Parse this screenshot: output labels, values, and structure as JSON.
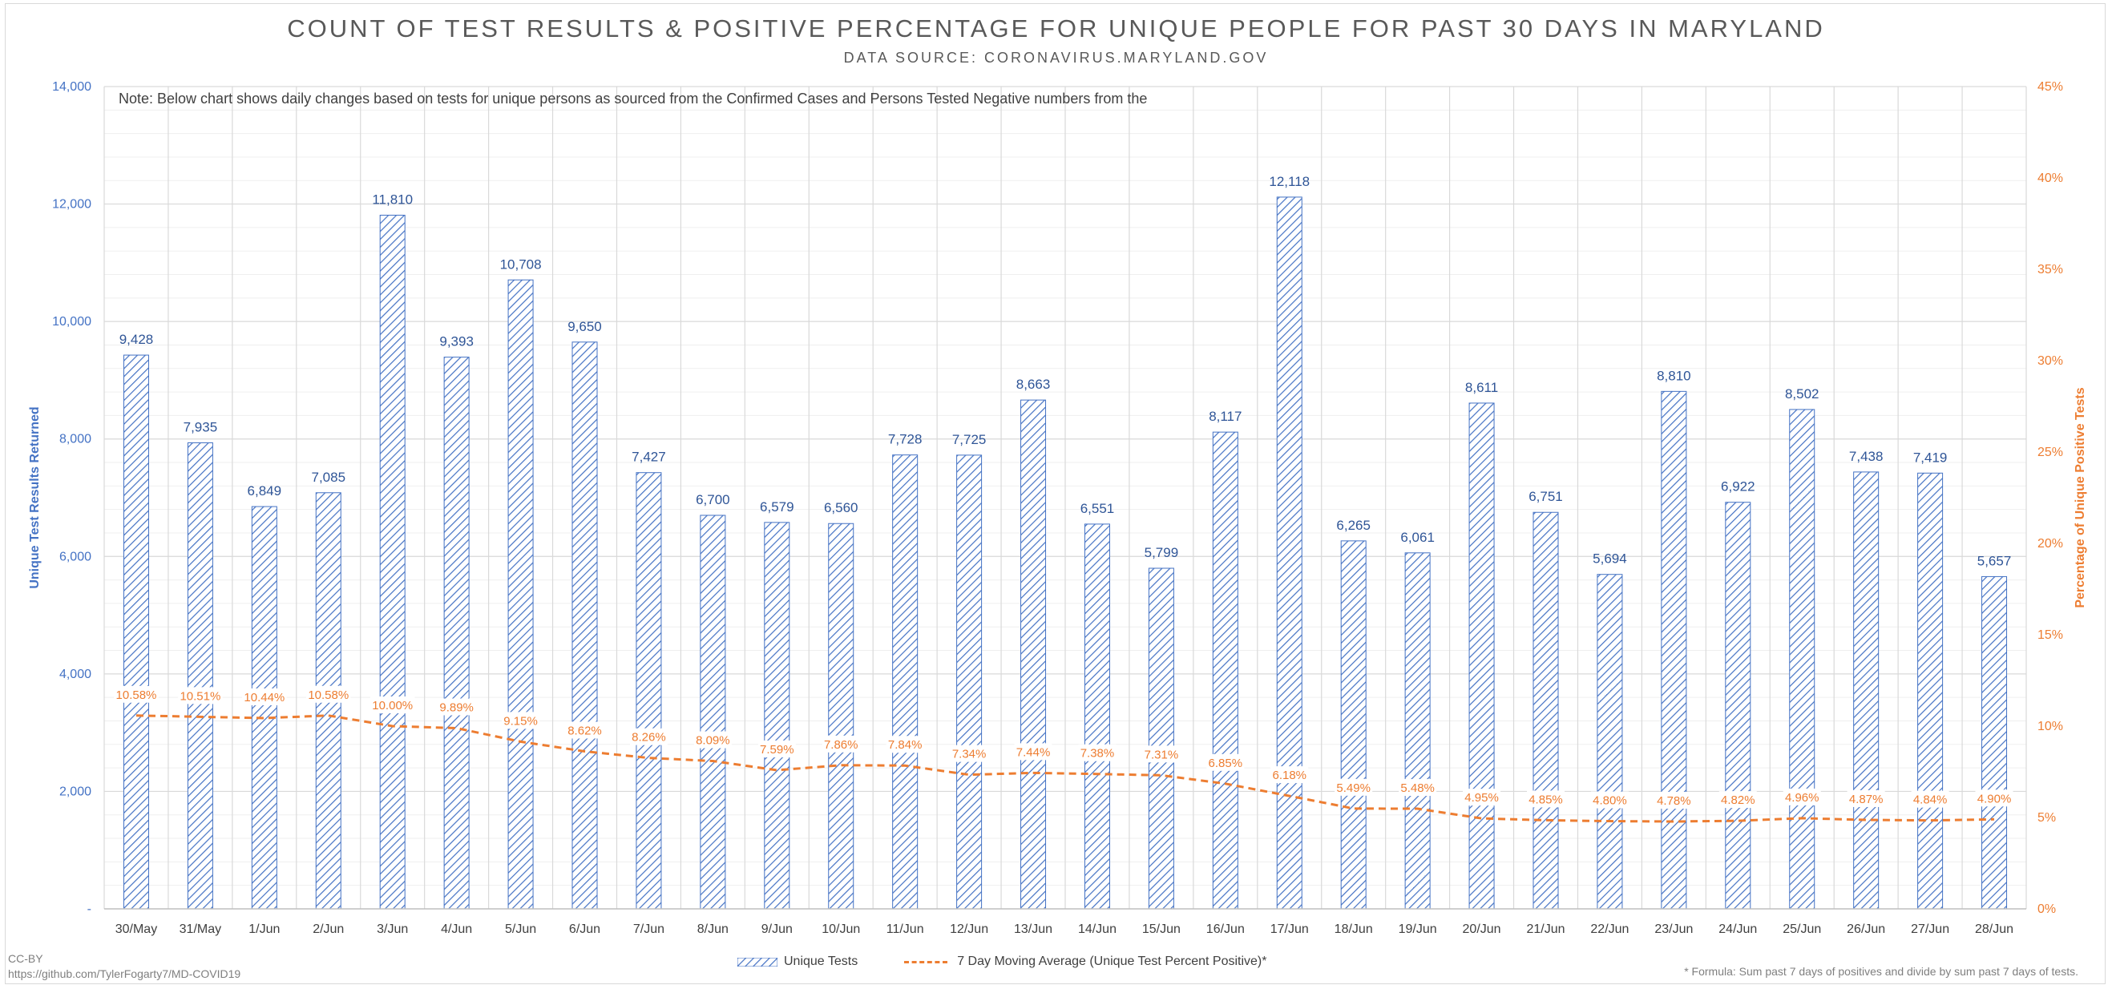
{
  "title": "COUNT OF TEST RESULTS & POSITIVE PERCENTAGE FOR UNIQUE PEOPLE FOR PAST 30 DAYS IN MARYLAND",
  "subtitle": "DATA SOURCE: CORONAVIRUS.MARYLAND.GOV",
  "note": "Note: Below chart shows daily changes based on tests for unique persons as sourced from the Confirmed Cases and Persons Tested Negative numbers from the",
  "footer": {
    "license": "CC-BY",
    "repo": "https://github.com/TylerFogarty7/MD-COVID19",
    "formula": "* Formula: Sum past 7 days of positives and divide by sum past 7 days of tests."
  },
  "colors": {
    "bars": "#4472c4",
    "line": "#ed7d31",
    "grid": "#d9d9d9",
    "text": "#595959"
  },
  "chart_data": {
    "type": "bar",
    "title": "COUNT OF TEST RESULTS & POSITIVE PERCENTAGE FOR UNIQUE PEOPLE FOR PAST 30 DAYS IN MARYLAND",
    "subtitle": "DATA SOURCE: CORONAVIRUS.MARYLAND.GOV",
    "ylabel": "Unique Test Results Returned",
    "y2label": "Percentage of Unique Positive Tests",
    "ylim": [
      0,
      14000
    ],
    "y2lim": [
      0,
      45
    ],
    "yticks": [
      "-",
      "2,000",
      "4,000",
      "6,000",
      "8,000",
      "10,000",
      "12,000",
      "14,000"
    ],
    "y2ticks": [
      "0%",
      "5%",
      "10%",
      "15%",
      "20%",
      "25%",
      "30%",
      "35%",
      "40%",
      "45%"
    ],
    "legend_position": "bottom",
    "categories": [
      "30/May",
      "31/May",
      "1/Jun",
      "2/Jun",
      "3/Jun",
      "4/Jun",
      "5/Jun",
      "6/Jun",
      "7/Jun",
      "8/Jun",
      "9/Jun",
      "10/Jun",
      "11/Jun",
      "12/Jun",
      "13/Jun",
      "14/Jun",
      "15/Jun",
      "16/Jun",
      "17/Jun",
      "18/Jun",
      "19/Jun",
      "20/Jun",
      "21/Jun",
      "22/Jun",
      "23/Jun",
      "24/Jun",
      "25/Jun",
      "26/Jun",
      "27/Jun",
      "28/Jun"
    ],
    "series": [
      {
        "name": "Unique Tests",
        "type": "bar",
        "axis": "left",
        "values": [
          9428,
          7935,
          6849,
          7085,
          11810,
          9393,
          10708,
          9650,
          7427,
          6700,
          6579,
          6560,
          7728,
          7725,
          8663,
          6551,
          5799,
          8117,
          12118,
          6265,
          6061,
          8611,
          6751,
          5694,
          8810,
          6922,
          8502,
          7438,
          7419,
          5657
        ],
        "labels": [
          "9,428",
          "7,935",
          "6,849",
          "7,085",
          "11,810",
          "9,393",
          "10,708",
          "9,650",
          "7,427",
          "6,700",
          "6,579",
          "6,560",
          "7,728",
          "7,725",
          "8,663",
          "6,551",
          "5,799",
          "8,117",
          "12,118",
          "6,265",
          "6,061",
          "8,611",
          "6,751",
          "5,694",
          "8,810",
          "6,922",
          "8,502",
          "7,438",
          "7,419",
          "5,657"
        ]
      },
      {
        "name": "7 Day Moving Average (Unique Test Percent Positive)*",
        "type": "line",
        "axis": "right",
        "values": [
          10.58,
          10.51,
          10.44,
          10.58,
          10.0,
          9.89,
          9.15,
          8.62,
          8.26,
          8.09,
          7.59,
          7.86,
          7.84,
          7.34,
          7.44,
          7.38,
          7.31,
          6.85,
          6.18,
          5.49,
          5.48,
          4.95,
          4.85,
          4.8,
          4.78,
          4.82,
          4.96,
          4.87,
          4.84,
          4.9
        ],
        "labels": [
          "10.58%",
          "10.51%",
          "10.44%",
          "10.58%",
          "10.00%",
          "9.89%",
          "9.15%",
          "8.62%",
          "8.26%",
          "8.09%",
          "7.59%",
          "7.86%",
          "7.84%",
          "7.34%",
          "7.44%",
          "7.38%",
          "7.31%",
          "6.85%",
          "6.18%",
          "5.49%",
          "5.48%",
          "4.95%",
          "4.85%",
          "4.80%",
          "4.78%",
          "4.82%",
          "4.96%",
          "4.87%",
          "4.84%",
          "4.90%"
        ]
      }
    ]
  }
}
